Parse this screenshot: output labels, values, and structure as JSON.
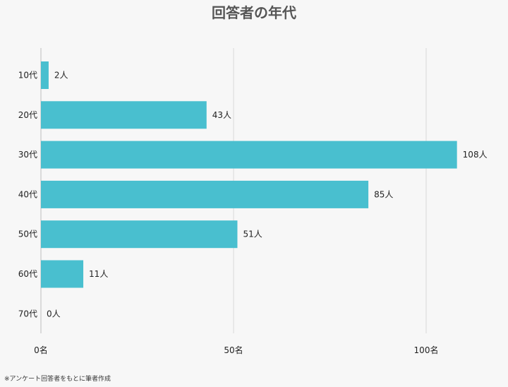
{
  "chart_data": {
    "type": "bar",
    "orientation": "horizontal",
    "title": "回答者の年代",
    "categories": [
      "10代",
      "20代",
      "30代",
      "40代",
      "50代",
      "60代",
      "70代"
    ],
    "values": [
      2,
      43,
      108,
      85,
      51,
      11,
      0
    ],
    "value_labels": [
      "2人",
      "43人",
      "108人",
      "85人",
      "51人",
      "11人",
      "0人"
    ],
    "x_ticks": [
      0,
      50,
      100
    ],
    "x_tick_labels": [
      "0名",
      "50名",
      "100名"
    ],
    "xlim": [
      0,
      110
    ],
    "grid": true,
    "legend": "none",
    "bar_color": "#49bfcf",
    "source_note": "※アンケート回答者をもとに筆者作成"
  }
}
